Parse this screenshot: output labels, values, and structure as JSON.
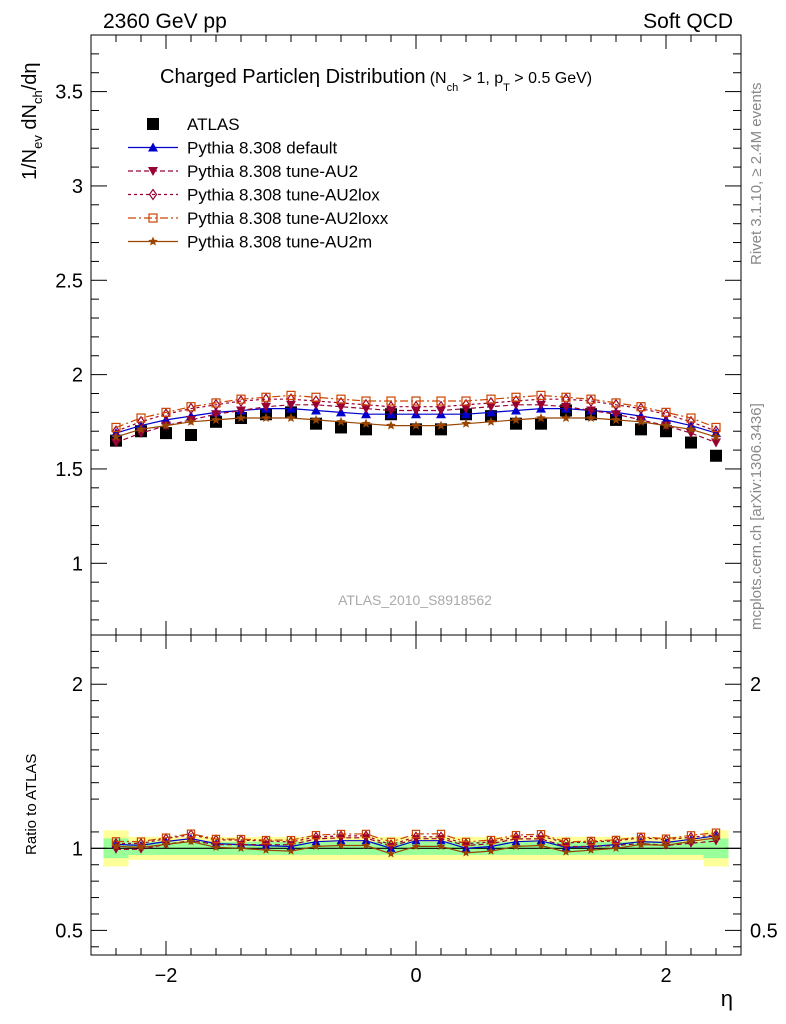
{
  "header": {
    "left": "2360 GeV pp",
    "right": "Soft QCD"
  },
  "title": {
    "main": "Charged Particleη Distribution",
    "cond_open": "(N",
    "cond_sub1": "ch",
    "cond_mid": " > 1, p",
    "cond_sub2": "T",
    "cond_close": " > 0.5 GeV)"
  },
  "y_axis_top": {
    "p1": "1/N",
    "s1": "ev",
    "p2": " dN",
    "s2": "ch",
    "p3": "/dη"
  },
  "y_axis_bottom": "Ratio to ATLAS",
  "x_axis_label": "η",
  "watermark": "ATLAS_2010_S8918562",
  "side_text_top": "Rivet 3.1.10, ≥ 2.4M events",
  "side_text_bottom": "mcplots.cern.ch [arXiv:1306.3436]",
  "legend": [
    {
      "label": "ATLAS",
      "color": "#000000",
      "marker": "square-filled"
    },
    {
      "label": "Pythia 8.308 default",
      "color": "#0000cc",
      "marker": "triangle-up-filled"
    },
    {
      "label": "Pythia 8.308 tune-AU2",
      "color": "#990033",
      "marker": "triangle-down-filled"
    },
    {
      "label": "Pythia 8.308 tune-AU2lox",
      "color": "#990033",
      "marker": "diamond-open"
    },
    {
      "label": "Pythia 8.308 tune-AU2loxx",
      "color": "#cc4400",
      "marker": "square-open"
    },
    {
      "label": "Pythia 8.308 tune-AU2m",
      "color": "#994400",
      "marker": "star"
    }
  ],
  "chart_data": {
    "type": "scatter",
    "x": [
      -2.4,
      -2.2,
      -2.0,
      -1.8,
      -1.6,
      -1.4,
      -1.2,
      -1.0,
      -0.8,
      -0.6,
      -0.4,
      -0.2,
      0.0,
      0.2,
      0.4,
      0.6,
      0.8,
      1.0,
      1.2,
      1.4,
      1.6,
      1.8,
      2.0,
      2.2,
      2.4
    ],
    "xlim": [
      -2.6,
      2.6
    ],
    "xticks": [
      -2,
      0,
      2
    ],
    "top_panel": {
      "ylim": [
        0.62,
        3.8
      ],
      "yticks": [
        1,
        1.5,
        2,
        2.5,
        3,
        3.5
      ],
      "series": [
        {
          "name": "ATLAS",
          "values": [
            1.65,
            1.7,
            1.69,
            1.68,
            1.75,
            1.77,
            1.79,
            1.8,
            1.74,
            1.72,
            1.71,
            1.79,
            1.71,
            1.71,
            1.79,
            1.78,
            1.74,
            1.74,
            1.81,
            1.79,
            1.76,
            1.71,
            1.7,
            1.64,
            1.57
          ]
        },
        {
          "name": "Pythia 8.308 default",
          "values": [
            1.69,
            1.73,
            1.76,
            1.78,
            1.8,
            1.81,
            1.82,
            1.82,
            1.81,
            1.8,
            1.79,
            1.79,
            1.79,
            1.79,
            1.79,
            1.8,
            1.81,
            1.82,
            1.82,
            1.81,
            1.8,
            1.78,
            1.76,
            1.73,
            1.69
          ]
        },
        {
          "name": "Pythia 8.308 tune-AU2",
          "values": [
            1.64,
            1.69,
            1.73,
            1.76,
            1.79,
            1.81,
            1.83,
            1.84,
            1.84,
            1.83,
            1.82,
            1.81,
            1.81,
            1.81,
            1.82,
            1.83,
            1.84,
            1.84,
            1.83,
            1.81,
            1.79,
            1.76,
            1.73,
            1.69,
            1.64
          ]
        },
        {
          "name": "Pythia 8.308 tune-AU2lox",
          "values": [
            1.7,
            1.75,
            1.79,
            1.82,
            1.84,
            1.86,
            1.87,
            1.87,
            1.86,
            1.85,
            1.84,
            1.83,
            1.83,
            1.83,
            1.84,
            1.85,
            1.86,
            1.87,
            1.87,
            1.86,
            1.84,
            1.82,
            1.79,
            1.75,
            1.7
          ]
        },
        {
          "name": "Pythia 8.308 tune-AU2loxx",
          "values": [
            1.72,
            1.77,
            1.8,
            1.83,
            1.85,
            1.87,
            1.88,
            1.89,
            1.88,
            1.87,
            1.86,
            1.86,
            1.86,
            1.86,
            1.86,
            1.87,
            1.88,
            1.89,
            1.88,
            1.87,
            1.85,
            1.83,
            1.8,
            1.77,
            1.72
          ]
        },
        {
          "name": "Pythia 8.308 tune-AU2m",
          "values": [
            1.67,
            1.71,
            1.73,
            1.75,
            1.76,
            1.77,
            1.77,
            1.77,
            1.76,
            1.75,
            1.74,
            1.73,
            1.73,
            1.73,
            1.74,
            1.75,
            1.76,
            1.77,
            1.77,
            1.77,
            1.76,
            1.75,
            1.73,
            1.71,
            1.67
          ]
        }
      ]
    },
    "bottom_panel": {
      "ylim": [
        0.35,
        2.3
      ],
      "yticks": [
        0.5,
        1,
        2
      ],
      "band_inner": [
        0.06,
        0.04,
        0.04,
        0.04,
        0.04,
        0.04,
        0.04,
        0.04,
        0.04,
        0.04,
        0.04,
        0.04,
        0.04,
        0.04,
        0.04,
        0.04,
        0.04,
        0.04,
        0.04,
        0.04,
        0.04,
        0.04,
        0.04,
        0.04,
        0.06
      ],
      "band_outer": [
        0.11,
        0.07,
        0.07,
        0.07,
        0.07,
        0.07,
        0.07,
        0.07,
        0.07,
        0.07,
        0.07,
        0.07,
        0.07,
        0.07,
        0.07,
        0.07,
        0.07,
        0.07,
        0.07,
        0.07,
        0.07,
        0.07,
        0.07,
        0.07,
        0.11
      ]
    }
  }
}
